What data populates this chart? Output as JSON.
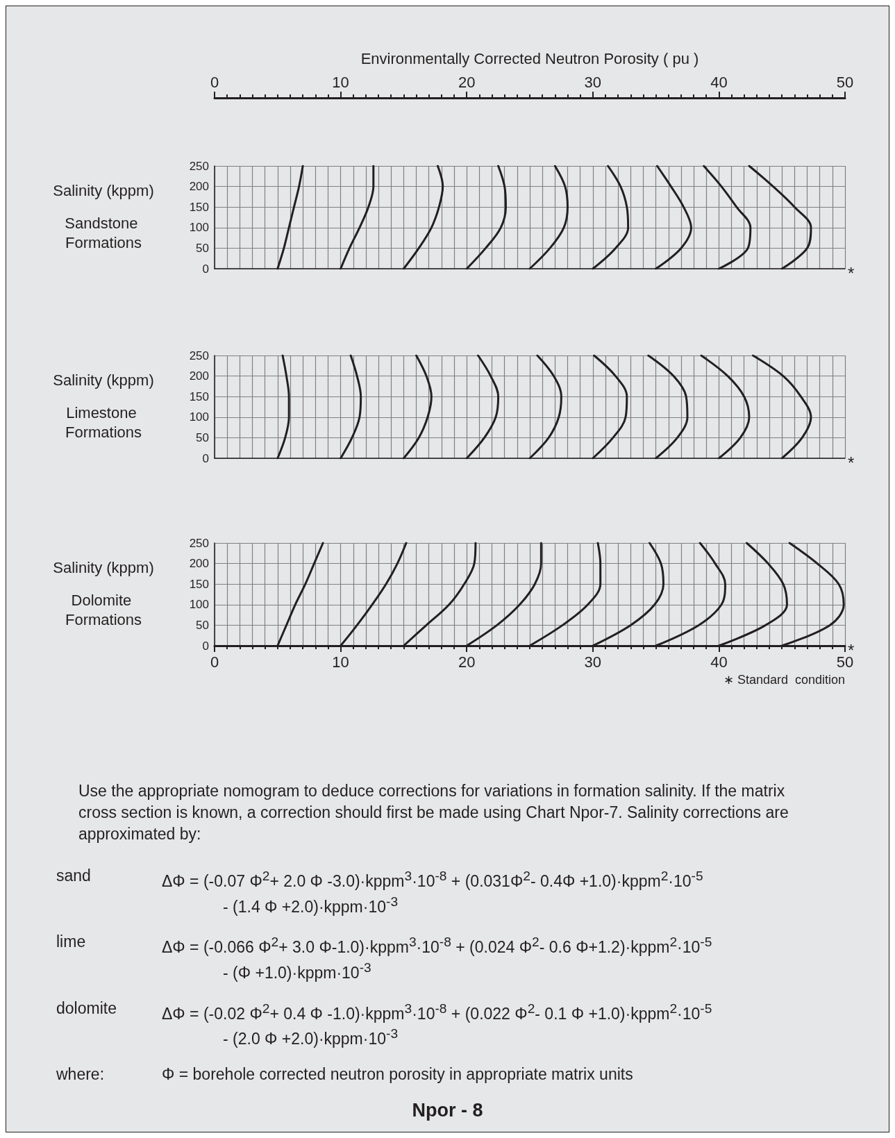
{
  "chart_data": [
    {
      "type": "line",
      "ylabel": "Salinity (kppm)",
      "title": "Sandstone Formations",
      "x2label": "Environmentally Corrected Neutron Porosity ( pu )",
      "xlim": [
        0,
        50
      ],
      "x2lim": [
        0,
        50
      ],
      "x2ticks": [
        0,
        10,
        20,
        30,
        40,
        50
      ],
      "ylim": [
        0,
        250
      ],
      "yticks": [
        0,
        50,
        100,
        150,
        200,
        250
      ],
      "grid": true,
      "tick_labels": "y",
      "marker": "none",
      "line_style": "solid",
      "annotations": [
        "*"
      ],
      "series": [
        {
          "color": "#231f20",
          "x": [
            5,
            5.5,
            5.9,
            6.3,
            6.7,
            7.0
          ],
          "values": [
            0,
            50,
            100,
            150,
            200,
            250
          ]
        },
        {
          "color": "#231f20",
          "x": [
            10,
            10.7,
            11.5,
            12.2,
            12.6,
            12.6
          ],
          "values": [
            0,
            50,
            100,
            150,
            200,
            250
          ]
        },
        {
          "color": "#231f20",
          "x": [
            15,
            16.2,
            17.2,
            17.8,
            18.1,
            17.7
          ],
          "values": [
            0,
            50,
            100,
            150,
            200,
            250
          ]
        },
        {
          "color": "#231f20",
          "x": [
            20,
            21.5,
            22.7,
            23.1,
            23.0,
            22.5
          ],
          "values": [
            0,
            50,
            100,
            150,
            200,
            250
          ]
        },
        {
          "color": "#231f20",
          "x": [
            25,
            26.6,
            27.7,
            28.0,
            27.8,
            27.0
          ],
          "values": [
            0,
            50,
            100,
            150,
            200,
            250
          ]
        },
        {
          "color": "#231f20",
          "x": [
            30,
            31.8,
            32.8,
            32.7,
            32.2,
            31.2
          ],
          "values": [
            0,
            50,
            100,
            150,
            200,
            250
          ]
        },
        {
          "color": "#231f20",
          "x": [
            35,
            37.0,
            37.8,
            37.2,
            36.2,
            35.1
          ],
          "values": [
            0,
            50,
            100,
            150,
            200,
            250
          ]
        },
        {
          "color": "#231f20",
          "x": [
            40,
            42.3,
            42.5,
            41.4,
            40.2,
            38.8
          ],
          "values": [
            0,
            50,
            100,
            150,
            200,
            250
          ]
        },
        {
          "color": "#231f20",
          "x": [
            45,
            47.0,
            47.3,
            46.0,
            44.3,
            42.4
          ],
          "values": [
            0,
            50,
            100,
            150,
            200,
            250
          ]
        }
      ]
    },
    {
      "type": "line",
      "ylabel": "Salinity (kppm)",
      "title": "Limestone Formations",
      "xlim": [
        0,
        50
      ],
      "ylim": [
        0,
        250
      ],
      "yticks": [
        0,
        50,
        100,
        150,
        200,
        250
      ],
      "grid": true,
      "tick_labels": "y",
      "marker": "none",
      "line_style": "solid",
      "annotations": [
        "*"
      ],
      "series": [
        {
          "color": "#231f20",
          "x": [
            5,
            5.6,
            5.9,
            5.9,
            5.7,
            5.4
          ],
          "values": [
            0,
            50,
            100,
            150,
            200,
            250
          ]
        },
        {
          "color": "#231f20",
          "x": [
            10,
            10.9,
            11.5,
            11.6,
            11.3,
            10.8
          ],
          "values": [
            0,
            50,
            100,
            150,
            200,
            250
          ]
        },
        {
          "color": "#231f20",
          "x": [
            15,
            16.2,
            16.9,
            17.2,
            16.8,
            16.0
          ],
          "values": [
            0,
            50,
            100,
            150,
            200,
            250
          ]
        },
        {
          "color": "#231f20",
          "x": [
            20,
            21.4,
            22.3,
            22.5,
            21.9,
            20.9
          ],
          "values": [
            0,
            50,
            100,
            150,
            200,
            250
          ]
        },
        {
          "color": "#231f20",
          "x": [
            25,
            26.5,
            27.3,
            27.5,
            26.9,
            25.6
          ],
          "values": [
            0,
            50,
            100,
            150,
            200,
            250
          ]
        },
        {
          "color": "#231f20",
          "x": [
            30,
            31.6,
            32.6,
            32.7,
            31.8,
            30.1
          ],
          "values": [
            0,
            50,
            100,
            150,
            200,
            250
          ]
        },
        {
          "color": "#231f20",
          "x": [
            35,
            36.7,
            37.5,
            37.4,
            36.4,
            34.4
          ],
          "values": [
            0,
            50,
            100,
            150,
            200,
            250
          ]
        },
        {
          "color": "#231f20",
          "x": [
            40,
            41.7,
            42.4,
            42.0,
            40.7,
            38.6
          ],
          "values": [
            0,
            50,
            100,
            150,
            200,
            250
          ]
        },
        {
          "color": "#231f20",
          "x": [
            45,
            46.6,
            47.3,
            46.5,
            45.1,
            42.7
          ],
          "values": [
            0,
            50,
            100,
            150,
            200,
            250
          ]
        }
      ]
    },
    {
      "type": "line",
      "ylabel": "Salinity (kppm)",
      "title": "Dolomite Formations",
      "xlim": [
        0,
        50
      ],
      "xticks": [
        0,
        10,
        20,
        30,
        40,
        50
      ],
      "ylim": [
        0,
        250
      ],
      "yticks": [
        0,
        50,
        100,
        150,
        200,
        250
      ],
      "grid": true,
      "marker": "none",
      "line_style": "solid",
      "annotations": [
        "*",
        "∗ Standard  condition"
      ],
      "series": [
        {
          "color": "#231f20",
          "x": [
            5,
            5.7,
            6.4,
            7.2,
            7.9,
            8.6
          ],
          "values": [
            0,
            50,
            100,
            150,
            200,
            250
          ]
        },
        {
          "color": "#231f20",
          "x": [
            10,
            11.3,
            12.5,
            13.6,
            14.5,
            15.2
          ],
          "values": [
            0,
            50,
            100,
            150,
            200,
            250
          ]
        },
        {
          "color": "#231f20",
          "x": [
            15,
            16.8,
            18.6,
            19.8,
            20.6,
            20.7
          ],
          "values": [
            0,
            50,
            100,
            150,
            200,
            250
          ]
        },
        {
          "color": "#231f20",
          "x": [
            20,
            22.4,
            24.2,
            25.4,
            25.9,
            25.9
          ],
          "values": [
            0,
            50,
            100,
            150,
            200,
            250
          ]
        },
        {
          "color": "#231f20",
          "x": [
            25,
            27.6,
            29.6,
            30.6,
            30.6,
            30.4
          ],
          "values": [
            0,
            50,
            100,
            150,
            200,
            250
          ]
        },
        {
          "color": "#231f20",
          "x": [
            30,
            33.0,
            34.9,
            35.6,
            35.4,
            34.5
          ],
          "values": [
            0,
            50,
            100,
            150,
            200,
            250
          ]
        },
        {
          "color": "#231f20",
          "x": [
            35,
            38.4,
            40.2,
            40.5,
            39.7,
            38.5
          ],
          "values": [
            0,
            50,
            100,
            150,
            200,
            250
          ]
        },
        {
          "color": "#231f20",
          "x": [
            40,
            43.7,
            45.4,
            45.1,
            43.9,
            42.2
          ],
          "values": [
            0,
            50,
            100,
            150,
            200,
            250
          ]
        },
        {
          "color": "#231f20",
          "x": [
            45,
            48.8,
            49.9,
            49.5,
            47.8,
            45.6
          ],
          "values": [
            0,
            50,
            100,
            150,
            200,
            250
          ]
        }
      ]
    },
    {
      "type": "other",
      "title": "Npor - 8",
      "annotations": [
        "Use the appropriate nomogram to deduce corrections for variations in formation salinity. If the matrix cross section is known, a correction should first be made using Chart Npor-7. Salinity corrections are approximated by:",
        "sand",
        "ΔΦ = (-0.07 Φ$^{2}$+ 2.0 Φ -3.0)·kppm$^{3}$·10$^{-8}$ + (0.031Φ$^{2}$- 0.4Φ +1.0)·kppm$^{2}$·10$^{-5}$\n- (1.4 Φ +2.0)·kppm·10$^{-3}$",
        "lime",
        "ΔΦ = (-0.066 Φ$^{2}$+ 3.0 Φ-1.0)·kppm$^{3}$·10$^{-8}$ + (0.024 Φ$^{2}$- 0.6 Φ+1.2)·kppm$^{2}$·10$^{-5}$\n- (Φ +1.0)·kppm·10$^{-3}$",
        "dolomite",
        "ΔΦ = (-0.02 Φ$^{2}$+ 0.4 Φ -1.0)·kppm$^{3}$·10$^{-8}$ + (0.022 Φ$^{2}$- 0.1 Φ +1.0)·kppm$^{2}$·10$^{-5}$\n- (2.0 Φ +2.0)·kppm·10$^{-3}$",
        "where:",
        "Φ = borehole corrected neutron porosity in appropriate matrix units"
      ]
    }
  ]
}
